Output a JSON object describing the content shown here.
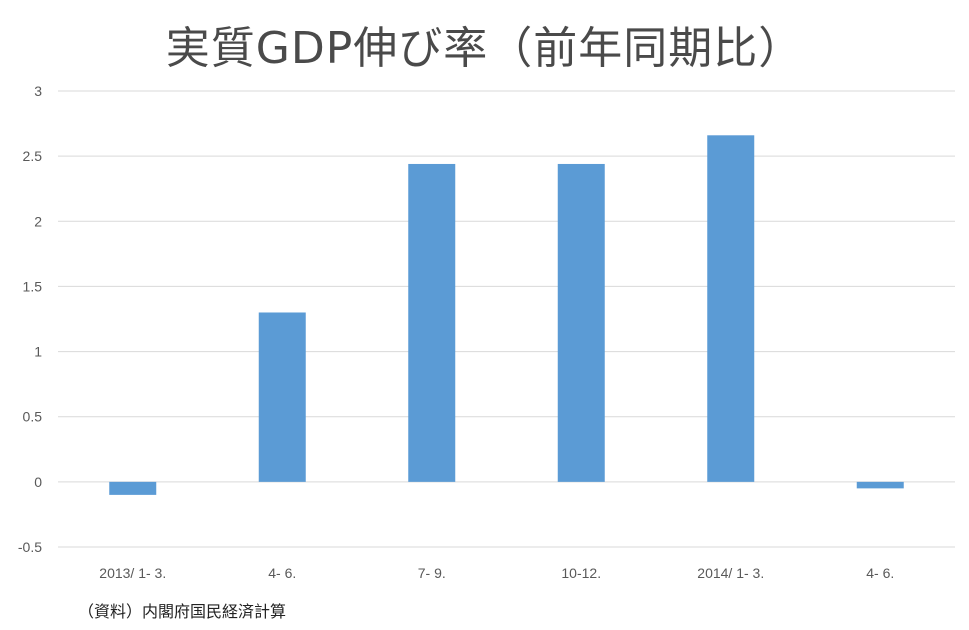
{
  "chart_data": {
    "type": "bar",
    "title": "実質GDP伸び率（前年同期比）",
    "xlabel": "",
    "ylabel": "",
    "categories": [
      "2013/ 1- 3.",
      "4- 6.",
      "7- 9.",
      "10-12.",
      "2014/ 1- 3.",
      "4- 6."
    ],
    "values": [
      -0.1,
      1.3,
      2.44,
      2.44,
      2.66,
      -0.05
    ],
    "ylim": [
      -0.5,
      3
    ],
    "yticks": [
      "-0.5",
      "0",
      "0.5",
      "1",
      "1.5",
      "2",
      "2.5",
      "3"
    ],
    "bar_color": "#5b9bd5",
    "gridlines": true,
    "legend": "none"
  },
  "note": "（資料）内閣府国民経済計算"
}
